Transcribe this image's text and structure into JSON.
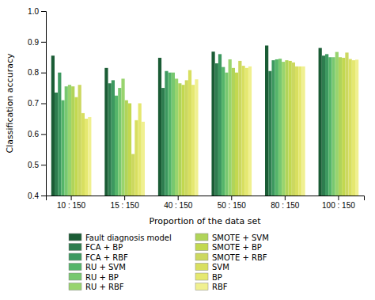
{
  "chart_data": {
    "type": "bar",
    "categories": [
      "10 : 150",
      "15 : 150",
      "40 : 150",
      "50 : 150",
      "80 : 150",
      "100 : 150"
    ],
    "series": [
      {
        "name": "Fault diagnosis model",
        "color": "#1a5c35",
        "values": [
          0.855,
          0.815,
          0.848,
          0.868,
          0.888,
          0.88
        ]
      },
      {
        "name": "FCA + BP",
        "color": "#2e7d4f",
        "values": [
          0.735,
          0.765,
          0.75,
          0.83,
          0.805,
          0.855
        ]
      },
      {
        "name": "FCA + RBF",
        "color": "#3d9960",
        "values": [
          0.8,
          0.775,
          0.805,
          0.86,
          0.84,
          0.86
        ]
      },
      {
        "name": "RU + SVM",
        "color": "#55b56a",
        "values": [
          0.71,
          0.725,
          0.8,
          0.818,
          0.843,
          0.85
        ]
      },
      {
        "name": "RU + BP",
        "color": "#78c870",
        "values": [
          0.755,
          0.75,
          0.8,
          0.8,
          0.845,
          0.85
        ]
      },
      {
        "name": "RU + RBF",
        "color": "#98d46e",
        "values": [
          0.76,
          0.78,
          0.78,
          0.843,
          0.835,
          0.867
        ]
      },
      {
        "name": "SMOTE + SVM",
        "color": "#b0d45a",
        "values": [
          0.755,
          0.71,
          0.765,
          0.815,
          0.84,
          0.85
        ]
      },
      {
        "name": "SMOTE + BP",
        "color": "#c2d850",
        "values": [
          0.72,
          0.7,
          0.76,
          0.8,
          0.838,
          0.848
        ]
      },
      {
        "name": "SMOTE + RBF",
        "color": "#ccd860",
        "values": [
          0.76,
          0.535,
          0.775,
          0.838,
          0.833,
          0.865
        ]
      },
      {
        "name": "SVM",
        "color": "#d8df60",
        "values": [
          0.668,
          0.645,
          0.808,
          0.822,
          0.82,
          0.844
        ]
      },
      {
        "name": "BP",
        "color": "#e5e870",
        "values": [
          0.65,
          0.7,
          0.76,
          0.815,
          0.82,
          0.84
        ]
      },
      {
        "name": "RBF",
        "color": "#f0f090",
        "values": [
          0.655,
          0.64,
          0.778,
          0.82,
          0.82,
          0.842
        ]
      }
    ],
    "xlabel": "Proportion of the data set",
    "ylabel": "Classification accuracy",
    "ylim": [
      0.4,
      1.0
    ],
    "yticks": [
      0.4,
      0.5,
      0.6,
      0.7,
      0.8,
      0.9,
      {
        "value": 1,
        "label": "1.0"
      }
    ],
    "legend": "bottom",
    "grid": false
  }
}
